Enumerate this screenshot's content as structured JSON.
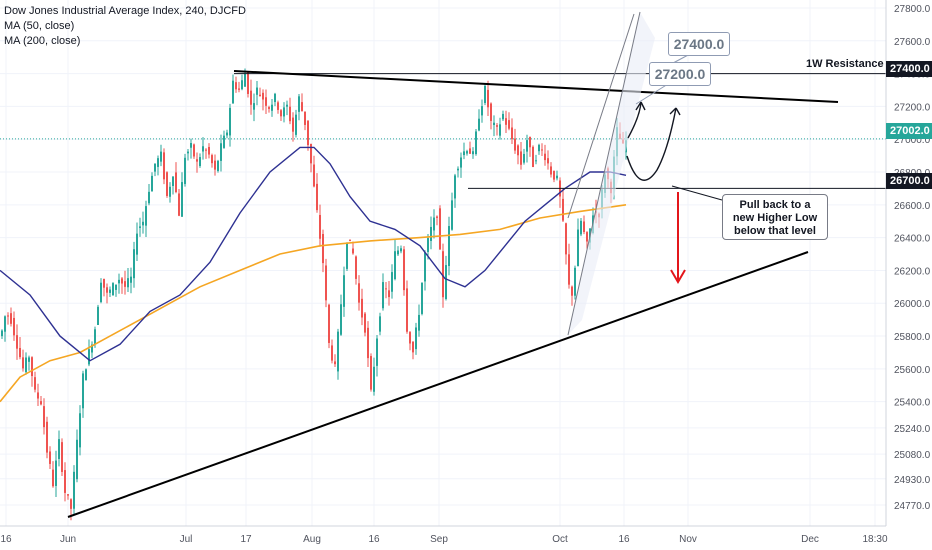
{
  "legend": {
    "title": "Dow Jones Industrial Average Index, 240, DJCFD",
    "ma50": "MA (50, close)",
    "ma200": "MA (200, close)"
  },
  "colors": {
    "up": "#26a69a",
    "down": "#ef5350",
    "ma50": "#2e3192",
    "ma200": "#f5a623",
    "trendline": "#000000",
    "current_line": "#26a69a",
    "red_arrow": "#e3161b"
  },
  "annotations": {
    "resistance_label": "1W Resistance",
    "target_high": "27400.0",
    "target_low": "27200.0",
    "pullback_note": [
      "Pull back to a",
      "new Higher Low",
      "below that level"
    ]
  },
  "price_tags": {
    "resistance": "27400.0",
    "current": "27002.0",
    "support": "26700.0"
  },
  "chart_data": {
    "type": "candlestick",
    "symbol": "Dow Jones Industrial Average Index, 240, DJCFD",
    "y_tick_labels": [
      "27800.0",
      "27600.0",
      "27400.0",
      "27200.0",
      "27000.0",
      "26800.0",
      "26600.0",
      "26400.0",
      "26200.0",
      "26000.0",
      "25800.0",
      "25600.0",
      "25400.0",
      "25240.0",
      "25080.0",
      "24930.0",
      "24770.0"
    ],
    "x_tick_labels": [
      "16",
      "Jun",
      "Jul",
      "17",
      "Aug",
      "16",
      "Sep",
      "Oct",
      "16",
      "Nov",
      "Dec",
      "18:30"
    ],
    "y_range": [
      24650,
      27900
    ],
    "current_price": 27002.0,
    "resistance_level": 27400.0,
    "support_level": 26700.0,
    "targets": [
      27200.0,
      27400.0
    ],
    "price_path": [
      [
        0,
        25800
      ],
      [
        5,
        25950
      ],
      [
        10,
        25900
      ],
      [
        16,
        25750
      ],
      [
        22,
        25600
      ],
      [
        28,
        25680
      ],
      [
        34,
        25450
      ],
      [
        40,
        25400
      ],
      [
        46,
        25100
      ],
      [
        52,
        24900
      ],
      [
        58,
        25150
      ],
      [
        64,
        24850
      ],
      [
        70,
        24750
      ],
      [
        76,
        25150
      ],
      [
        82,
        25550
      ],
      [
        88,
        25700
      ],
      [
        94,
        25850
      ],
      [
        100,
        26150
      ],
      [
        106,
        26050
      ],
      [
        112,
        26100
      ],
      [
        118,
        26150
      ],
      [
        124,
        26100
      ],
      [
        130,
        26150
      ],
      [
        136,
        26450
      ],
      [
        142,
        26500
      ],
      [
        148,
        26700
      ],
      [
        154,
        26850
      ],
      [
        160,
        26900
      ],
      [
        166,
        26650
      ],
      [
        172,
        26800
      ],
      [
        178,
        26550
      ],
      [
        184,
        26900
      ],
      [
        190,
        26950
      ],
      [
        196,
        26850
      ],
      [
        202,
        26950
      ],
      [
        208,
        26900
      ],
      [
        214,
        26800
      ],
      [
        220,
        26950
      ],
      [
        226,
        27050
      ],
      [
        232,
        27350
      ],
      [
        238,
        27300
      ],
      [
        244,
        27400
      ],
      [
        250,
        27200
      ],
      [
        256,
        27300
      ],
      [
        262,
        27250
      ],
      [
        268,
        27200
      ],
      [
        274,
        27250
      ],
      [
        280,
        27150
      ],
      [
        286,
        27200
      ],
      [
        292,
        27050
      ],
      [
        298,
        27250
      ],
      [
        304,
        27100
      ],
      [
        310,
        26850
      ],
      [
        316,
        26550
      ],
      [
        322,
        26250
      ],
      [
        328,
        25750
      ],
      [
        334,
        25600
      ],
      [
        340,
        26000
      ],
      [
        346,
        26400
      ],
      [
        352,
        26300
      ],
      [
        358,
        26000
      ],
      [
        364,
        25850
      ],
      [
        370,
        25450
      ],
      [
        376,
        25800
      ],
      [
        382,
        26100
      ],
      [
        388,
        26050
      ],
      [
        394,
        26300
      ],
      [
        400,
        26350
      ],
      [
        406,
        25850
      ],
      [
        412,
        25700
      ],
      [
        418,
        25950
      ],
      [
        424,
        26300
      ],
      [
        430,
        26450
      ],
      [
        436,
        26550
      ],
      [
        442,
        26050
      ],
      [
        448,
        26450
      ],
      [
        454,
        26800
      ],
      [
        460,
        26900
      ],
      [
        466,
        26950
      ],
      [
        472,
        26900
      ],
      [
        478,
        27150
      ],
      [
        484,
        27300
      ],
      [
        490,
        27100
      ],
      [
        496,
        27050
      ],
      [
        502,
        27150
      ],
      [
        508,
        27050
      ],
      [
        514,
        26950
      ],
      [
        520,
        26850
      ],
      [
        526,
        27000
      ],
      [
        532,
        26850
      ],
      [
        538,
        26950
      ],
      [
        544,
        26900
      ],
      [
        550,
        26800
      ],
      [
        556,
        26750
      ],
      [
        560,
        26600
      ],
      [
        564,
        26350
      ],
      [
        568,
        26100
      ],
      [
        572,
        26050
      ],
      [
        576,
        26400
      ],
      [
        580,
        26500
      ],
      [
        586,
        26350
      ],
      [
        592,
        26550
      ],
      [
        598,
        26550
      ],
      [
        604,
        26800
      ],
      [
        610,
        26700
      ],
      [
        616,
        27050
      ],
      [
        622,
        26950
      ],
      [
        626,
        27002
      ]
    ],
    "ma50_path": [
      [
        0,
        26200
      ],
      [
        30,
        26050
      ],
      [
        60,
        25800
      ],
      [
        90,
        25650
      ],
      [
        120,
        25750
      ],
      [
        150,
        25950
      ],
      [
        180,
        26050
      ],
      [
        210,
        26250
      ],
      [
        240,
        26550
      ],
      [
        270,
        26800
      ],
      [
        300,
        26950
      ],
      [
        314,
        26950
      ],
      [
        330,
        26850
      ],
      [
        350,
        26650
      ],
      [
        370,
        26500
      ],
      [
        395,
        26450
      ],
      [
        420,
        26350
      ],
      [
        445,
        26150
      ],
      [
        465,
        26100
      ],
      [
        485,
        26200
      ],
      [
        505,
        26350
      ],
      [
        525,
        26500
      ],
      [
        545,
        26600
      ],
      [
        565,
        26700
      ],
      [
        590,
        26800
      ],
      [
        610,
        26800
      ],
      [
        626,
        26780
      ]
    ],
    "ma200_path": [
      [
        0,
        25400
      ],
      [
        20,
        25550
      ],
      [
        50,
        25650
      ],
      [
        80,
        25700
      ],
      [
        110,
        25800
      ],
      [
        140,
        25900
      ],
      [
        170,
        26000
      ],
      [
        200,
        26100
      ],
      [
        240,
        26200
      ],
      [
        280,
        26300
      ],
      [
        320,
        26350
      ],
      [
        370,
        26380
      ],
      [
        420,
        26400
      ],
      [
        460,
        26420
      ],
      [
        500,
        26450
      ],
      [
        540,
        26520
      ],
      [
        580,
        26560
      ],
      [
        626,
        26600
      ]
    ]
  }
}
